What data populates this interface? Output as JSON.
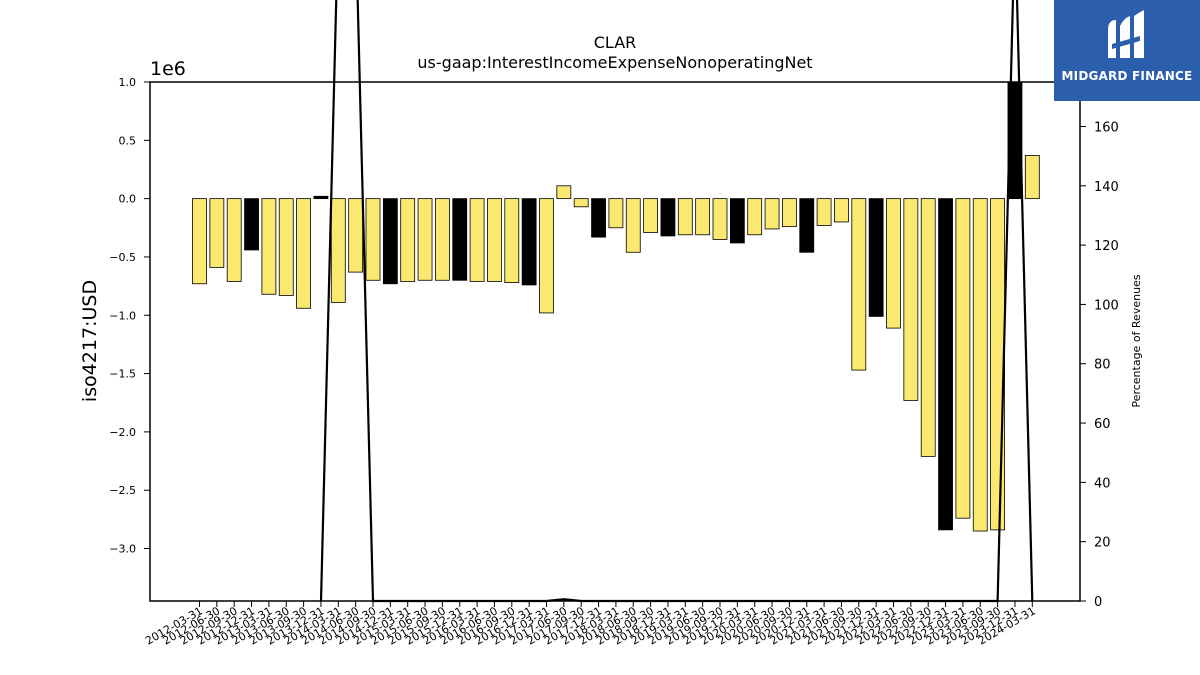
{
  "logo": {
    "text": "MIDGARD FINANCE",
    "icon": "midgard-finance-logo-icon",
    "background": "#2b5fae"
  },
  "chart_data": {
    "type": "bar",
    "title": "CLAR",
    "subtitle": "us-gaap:InterestIncomeExpenseNonoperatingNet",
    "ylabel": "iso4217:USD",
    "y_scale_label": "1e6",
    "y2label": "Percentage of Revenues",
    "ylim": [
      -3.45,
      1.0
    ],
    "y2lim": [
      0,
      175
    ],
    "yticks": [
      "1.0",
      "0.5",
      "0.0",
      "−0.5",
      "−1.0",
      "−1.5",
      "−2.0",
      "−2.5",
      "−3.0"
    ],
    "ytick_values": [
      1.0,
      0.5,
      0.0,
      -0.5,
      -1.0,
      -1.5,
      -2.0,
      -2.5,
      -3.0
    ],
    "y2ticks": [
      "0",
      "20",
      "40",
      "60",
      "80",
      "100",
      "120",
      "140",
      "160"
    ],
    "y2tick_values": [
      0,
      20,
      40,
      60,
      80,
      100,
      120,
      140,
      160
    ],
    "colors": {
      "bar_normal": "#fbe870",
      "bar_highlight": "#000000",
      "line": "#000000"
    },
    "categories": [
      "2012-03-31",
      "2012-06-30",
      "2012-09-30",
      "2012-12-31",
      "2013-03-31",
      "2013-06-30",
      "2013-09-30",
      "2013-12-31",
      "2014-03-31",
      "2014-06-30",
      "2014-09-30",
      "2014-12-31",
      "2015-03-31",
      "2015-06-30",
      "2015-09-30",
      "2015-12-31",
      "2016-03-31",
      "2016-06-30",
      "2016-09-30",
      "2016-12-31",
      "2017-03-31",
      "2017-06-30",
      "2017-09-30",
      "2017-12-31",
      "2018-03-31",
      "2018-06-30",
      "2018-09-30",
      "2018-12-31",
      "2019-03-31",
      "2019-06-30",
      "2019-09-30",
      "2019-12-31",
      "2020-03-31",
      "2020-06-30",
      "2020-09-30",
      "2020-12-31",
      "2021-03-31",
      "2021-06-30",
      "2021-09-30",
      "2021-12-31",
      "2022-03-31",
      "2022-06-30",
      "2022-09-30",
      "2022-12-31",
      "2023-03-31",
      "2023-06-30",
      "2023-09-30",
      "2023-12-31",
      "2024-03-31"
    ],
    "values": [
      -0.73,
      -0.59,
      -0.71,
      -0.44,
      -0.82,
      -0.83,
      -0.94,
      0.02,
      -0.89,
      -0.63,
      -0.7,
      -0.73,
      -0.71,
      -0.7,
      -0.7,
      -0.7,
      -0.71,
      -0.71,
      -0.72,
      -0.74,
      -0.98,
      0.11,
      -0.07,
      -0.33,
      -0.25,
      -0.46,
      -0.29,
      -0.32,
      -0.31,
      -0.31,
      -0.35,
      -0.38,
      -0.31,
      -0.26,
      -0.24,
      -0.46,
      -0.23,
      -0.2,
      -1.47,
      -1.01,
      -1.11,
      -1.73,
      -2.21,
      -2.84,
      -2.74,
      -2.85,
      -2.84,
      1.15,
      0.37
    ],
    "highlight": [
      false,
      false,
      false,
      true,
      false,
      false,
      false,
      true,
      false,
      false,
      false,
      true,
      false,
      false,
      false,
      true,
      false,
      false,
      false,
      true,
      false,
      false,
      false,
      true,
      false,
      false,
      false,
      true,
      false,
      false,
      false,
      true,
      false,
      false,
      false,
      true,
      false,
      false,
      false,
      true,
      false,
      false,
      false,
      true,
      false,
      false,
      false,
      true,
      false
    ],
    "pct_revenue": [
      null,
      null,
      null,
      null,
      null,
      null,
      null,
      0,
      230,
      230,
      0,
      0,
      0,
      0,
      0,
      0,
      0,
      0,
      0,
      0,
      0,
      0.6,
      0,
      0,
      0,
      0,
      0,
      0,
      0,
      0,
      0,
      0,
      0,
      0,
      0,
      0,
      0,
      0,
      0,
      0,
      0,
      0,
      0,
      0,
      0,
      0,
      0,
      230,
      0
    ]
  }
}
